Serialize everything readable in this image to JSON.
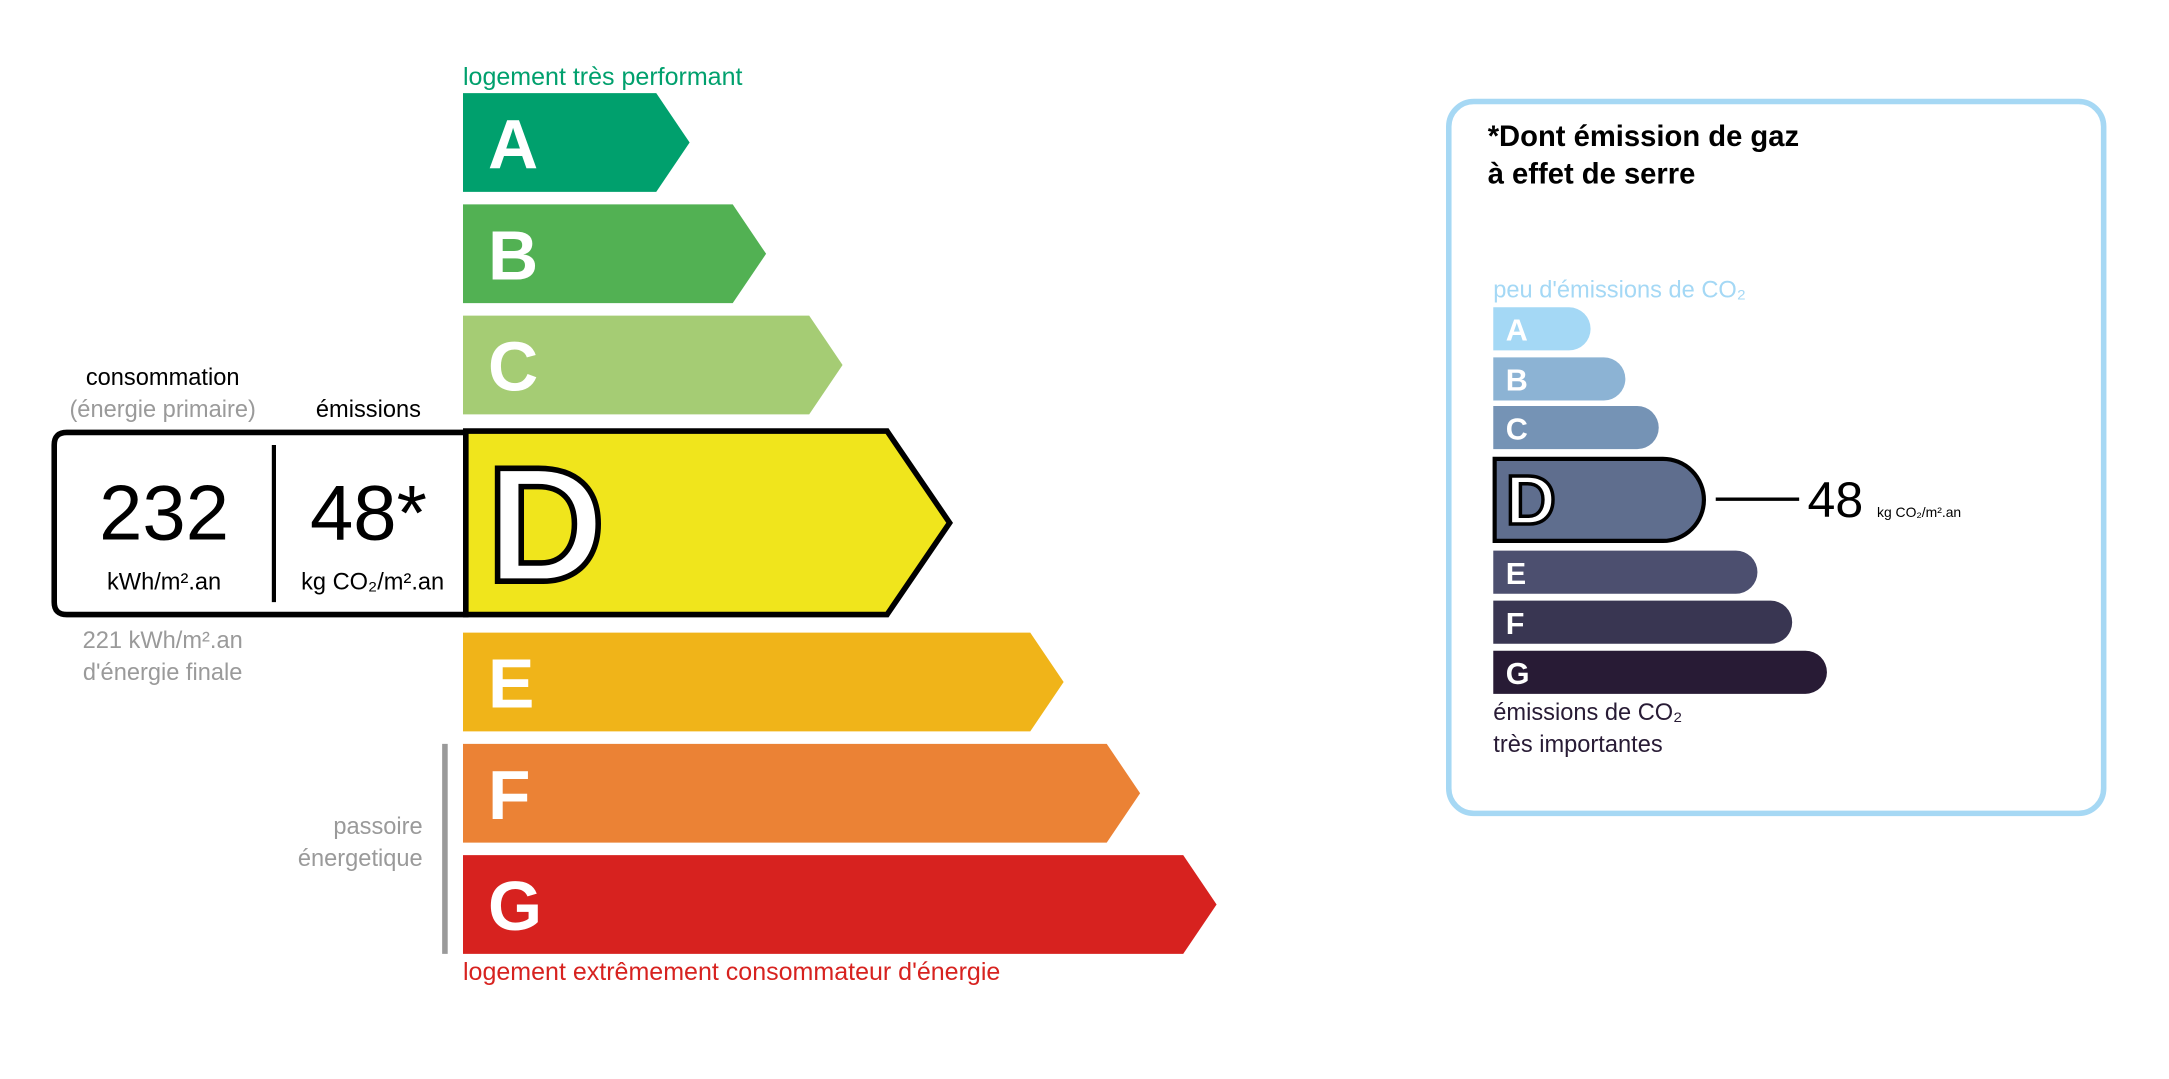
{
  "energy": {
    "top_label": "logement très performant",
    "bottom_label": "logement extrêmement consommateur d'énergie",
    "top_label_color": "#00a06d",
    "bottom_label_color": "#d7221f",
    "classes": [
      {
        "letter": "A",
        "color": "#00a06d"
      },
      {
        "letter": "B",
        "color": "#52b153"
      },
      {
        "letter": "C",
        "color": "#a5cc74"
      },
      {
        "letter": "D",
        "color": "#f0e51c"
      },
      {
        "letter": "E",
        "color": "#f0b419"
      },
      {
        "letter": "F",
        "color": "#eb8235"
      },
      {
        "letter": "G",
        "color": "#d7221f"
      }
    ],
    "current_class": "D",
    "consumption_header": "consommation",
    "consumption_subheader": "(énergie primaire)",
    "emissions_header": "émissions",
    "consumption_value": "232",
    "consumption_unit": "kWh/m².an",
    "emissions_value": "48*",
    "emissions_unit": "kg CO₂/m².an",
    "final_energy_value": "221 kWh/m².an",
    "final_energy_label": "d'énergie finale",
    "passoire_line1": "passoire",
    "passoire_line2": "énergetique"
  },
  "ges": {
    "title_line1": "*Dont émission de gaz",
    "title_line2": "à effet de serre",
    "top_label": "peu d'émissions de CO₂",
    "bottom_label_line1": "émissions de CO₂",
    "bottom_label_line2": "très importantes",
    "border_color": "#a6d8f4",
    "classes": [
      {
        "letter": "A",
        "color": "#a4d8f5"
      },
      {
        "letter": "B",
        "color": "#8cb3d4"
      },
      {
        "letter": "C",
        "color": "#7593b5"
      },
      {
        "letter": "D",
        "color": "#5f6e8e"
      },
      {
        "letter": "E",
        "color": "#4c4f6f"
      },
      {
        "letter": "F",
        "color": "#393652"
      },
      {
        "letter": "G",
        "color": "#281b35"
      }
    ],
    "current_class": "D",
    "value": "48",
    "unit": "kg CO₂/m².an"
  }
}
